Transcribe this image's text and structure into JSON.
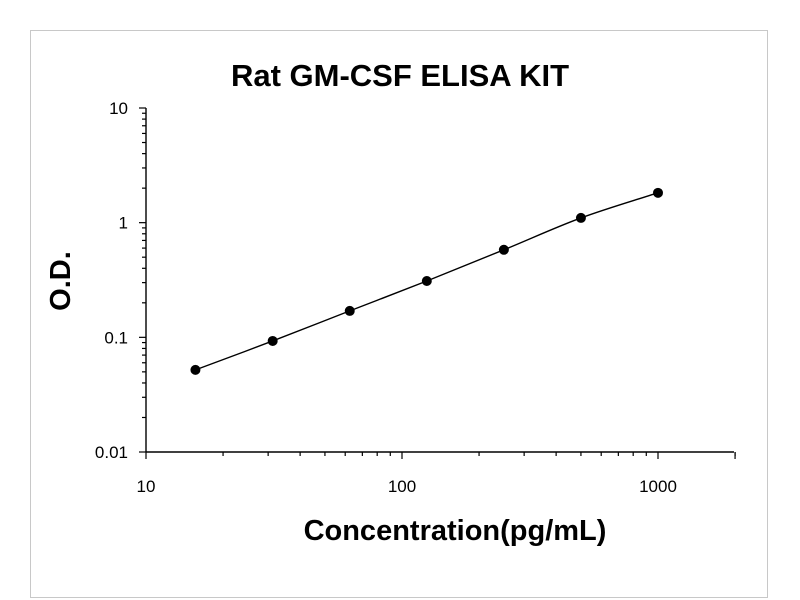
{
  "chart_data": {
    "type": "scatter",
    "title": "Rat GM-CSF ELISA KIT",
    "xlabel": "Concentration(pg/mL)",
    "ylabel": "O.D.",
    "x_scale": "log",
    "y_scale": "log",
    "xlim": [
      10,
      2000
    ],
    "ylim": [
      0.01,
      10
    ],
    "x_ticks": [
      10,
      100,
      1000
    ],
    "x_tick_labels": [
      "10",
      "100",
      "1000"
    ],
    "y_ticks": [
      0.01,
      0.1,
      1,
      10
    ],
    "y_tick_labels": [
      "0.01",
      "0.1",
      "1",
      "10"
    ],
    "grid": false,
    "legend": "none",
    "series": [
      {
        "x": [
          15.6,
          31.25,
          62.5,
          125,
          250,
          500,
          1000
        ],
        "y": [
          0.052,
          0.093,
          0.17,
          0.31,
          0.58,
          1.1,
          1.82
        ]
      }
    ],
    "fit_curve": true,
    "marker_color": "#000000",
    "line_color": "#000000"
  }
}
